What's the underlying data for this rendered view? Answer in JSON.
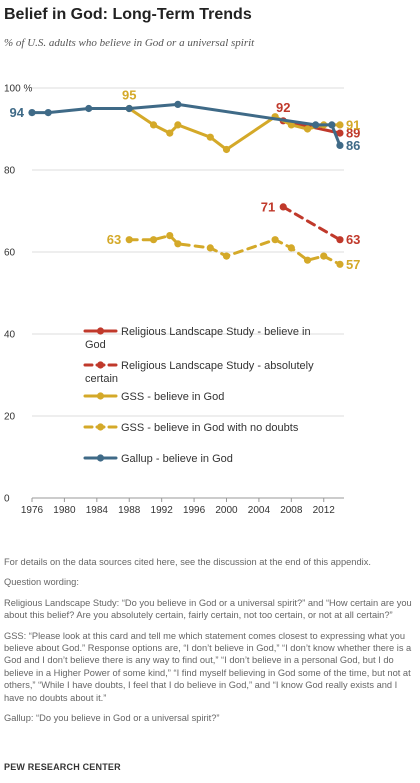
{
  "title": "Belief in God: Long-Term Trends",
  "subtitle": "% of U.S. adults who believe in God or a universal spirit",
  "colors": {
    "rls": "#c0392b",
    "gss": "#d4a929",
    "gallup": "#3f6a87",
    "grid": "#dddddd",
    "axis": "#999999"
  },
  "chart_data": {
    "type": "line",
    "title": "Belief in God: Long-Term Trends",
    "subtitle": "% of U.S. adults who believe in God or a universal spirit",
    "xlim": [
      1976,
      2014.5
    ],
    "ylim": [
      0,
      100
    ],
    "x_ticks": [
      "1976",
      "1980",
      "1984",
      "1988",
      "1992",
      "1996",
      "2000",
      "2004",
      "2008",
      "2012"
    ],
    "y_ticks": [
      "0",
      "20",
      "40",
      "60",
      "80",
      "100 %"
    ],
    "grid": true,
    "legend_position": "lower-center",
    "series": [
      {
        "name": "Religious Landscape Study - believe in God",
        "color_key": "rls",
        "dashed": false,
        "points": [
          [
            2007,
            92
          ],
          [
            2014,
            89
          ]
        ],
        "labels": [
          {
            "x": 2007,
            "y": 92,
            "text": "92",
            "pos": "above"
          },
          {
            "x": 2014,
            "y": 89,
            "text": "89",
            "pos": "right"
          }
        ]
      },
      {
        "name": "Religious Landscape Study - absolutely certain",
        "color_key": "rls",
        "dashed": true,
        "points": [
          [
            2007,
            71
          ],
          [
            2014,
            63
          ]
        ],
        "labels": [
          {
            "x": 2007,
            "y": 71,
            "text": "71",
            "pos": "left"
          },
          {
            "x": 2014,
            "y": 63,
            "text": "63",
            "pos": "right"
          }
        ]
      },
      {
        "name": "GSS - believe in God",
        "color_key": "gss",
        "dashed": false,
        "points": [
          [
            1988,
            95
          ],
          [
            1991,
            91
          ],
          [
            1993,
            89
          ],
          [
            1994,
            91
          ],
          [
            1998,
            88
          ],
          [
            2000,
            85
          ],
          [
            2006,
            93
          ],
          [
            2008,
            91
          ],
          [
            2010,
            90
          ],
          [
            2012,
            91
          ],
          [
            2014,
            91
          ]
        ],
        "labels": [
          {
            "x": 1988,
            "y": 95,
            "text": "95",
            "pos": "above"
          },
          {
            "x": 2014,
            "y": 91,
            "text": "91",
            "pos": "right"
          }
        ]
      },
      {
        "name": "GSS - believe in God with no doubts",
        "color_key": "gss",
        "dashed": true,
        "points": [
          [
            1988,
            63
          ],
          [
            1991,
            63
          ],
          [
            1993,
            64
          ],
          [
            1994,
            62
          ],
          [
            1998,
            61
          ],
          [
            2000,
            59
          ],
          [
            2006,
            63
          ],
          [
            2008,
            61
          ],
          [
            2010,
            58
          ],
          [
            2012,
            59
          ],
          [
            2014,
            57
          ]
        ],
        "labels": [
          {
            "x": 1988,
            "y": 63,
            "text": "63",
            "pos": "left"
          },
          {
            "x": 2014,
            "y": 57,
            "text": "57",
            "pos": "right"
          }
        ]
      },
      {
        "name": "Gallup - believe in God",
        "color_key": "gallup",
        "dashed": false,
        "points": [
          [
            1976,
            94
          ],
          [
            1978,
            94
          ],
          [
            1983,
            95
          ],
          [
            1988,
            95
          ],
          [
            1994,
            96
          ],
          [
            2011,
            91
          ],
          [
            2013,
            91
          ],
          [
            2014,
            86
          ]
        ],
        "labels": [
          {
            "x": 1976,
            "y": 94,
            "text": "94",
            "pos": "left"
          },
          {
            "x": 2014,
            "y": 86,
            "text": "86",
            "pos": "right"
          }
        ]
      }
    ]
  },
  "notes": {
    "sources": "For details on the data sources cited here, see the discussion at the end of this appendix.",
    "question_heading": "Question wording:",
    "rls": "Religious Landscape Study: “Do you believe in God or a universal spirit?” and “How certain are you about this belief? Are you absolutely certain, fairly certain, not too certain, or not at all certain?”",
    "gss": "GSS: “Please look at this card and tell me which statement comes closest to expressing what you believe about God.” Response options are, “I don’t believe in God,” “I don’t know whether there is a God and I don’t believe there is any way to find out,” “I don’t believe in a personal God, but I do believe in a Higher Power of some kind,” “I find myself believing in God some of the time, but not at others,” “While I have doubts, I feel that I do believe in God,” and “I know God really exists and I have no doubts about it.”",
    "gallup": "Gallup: “Do you believe in God or a universal spirit?”"
  },
  "source": "PEW RESEARCH CENTER"
}
